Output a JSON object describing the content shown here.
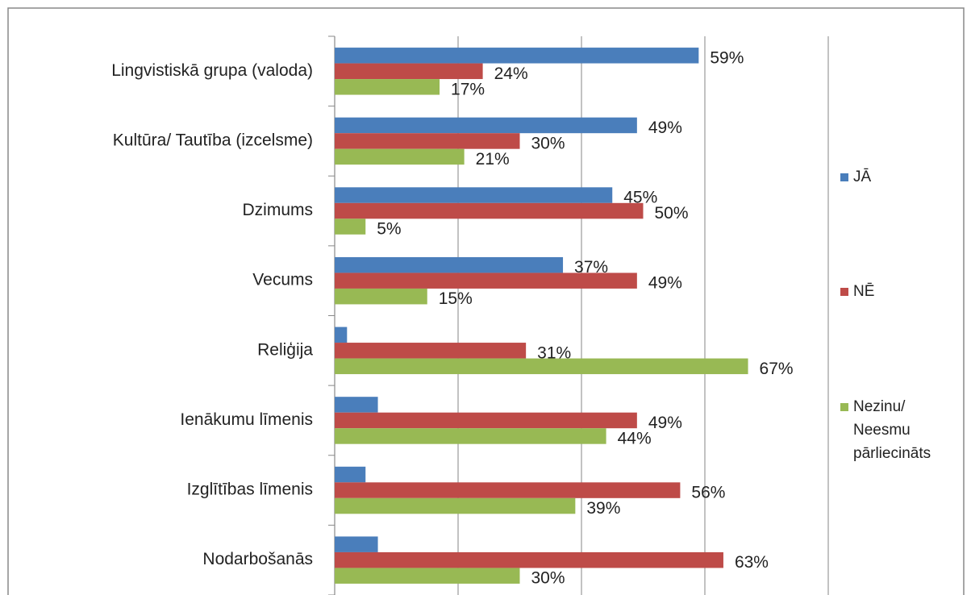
{
  "chart_data": {
    "type": "barh",
    "categories": [
      "Lingvistiskā grupa (valoda)",
      "Kultūra/ Tautība (izcelsme)",
      "Dzimums",
      "Vecums",
      "Reliģija",
      "Ienākumu līmenis",
      "Izglītības līmenis",
      "Nodarbošanās"
    ],
    "series": [
      {
        "name": "JĀ",
        "color": "#4a7ebb",
        "values": [
          59,
          49,
          45,
          37,
          2,
          7,
          5,
          7
        ],
        "value_labels": [
          "59%",
          "49%",
          "45%",
          "37%",
          null,
          null,
          null,
          null
        ]
      },
      {
        "name": "NĒ",
        "color": "#be4b48",
        "values": [
          24,
          30,
          50,
          49,
          31,
          49,
          56,
          63
        ],
        "value_labels": [
          "24%",
          "30%",
          "50%",
          "49%",
          "31%",
          "49%",
          "56%",
          "63%"
        ]
      },
      {
        "name": "Nezinu/ Neesmu pārliecināts",
        "color": "#98b954",
        "values": [
          17,
          21,
          5,
          15,
          67,
          44,
          39,
          30
        ],
        "value_labels": [
          "17%",
          "21%",
          "5%",
          "15%",
          "67%",
          "44%",
          "39%",
          "30%"
        ]
      }
    ],
    "xlim": [
      0,
      80
    ],
    "xticks": [
      0,
      20,
      40,
      60,
      80
    ],
    "grid": true,
    "legend": "right"
  }
}
